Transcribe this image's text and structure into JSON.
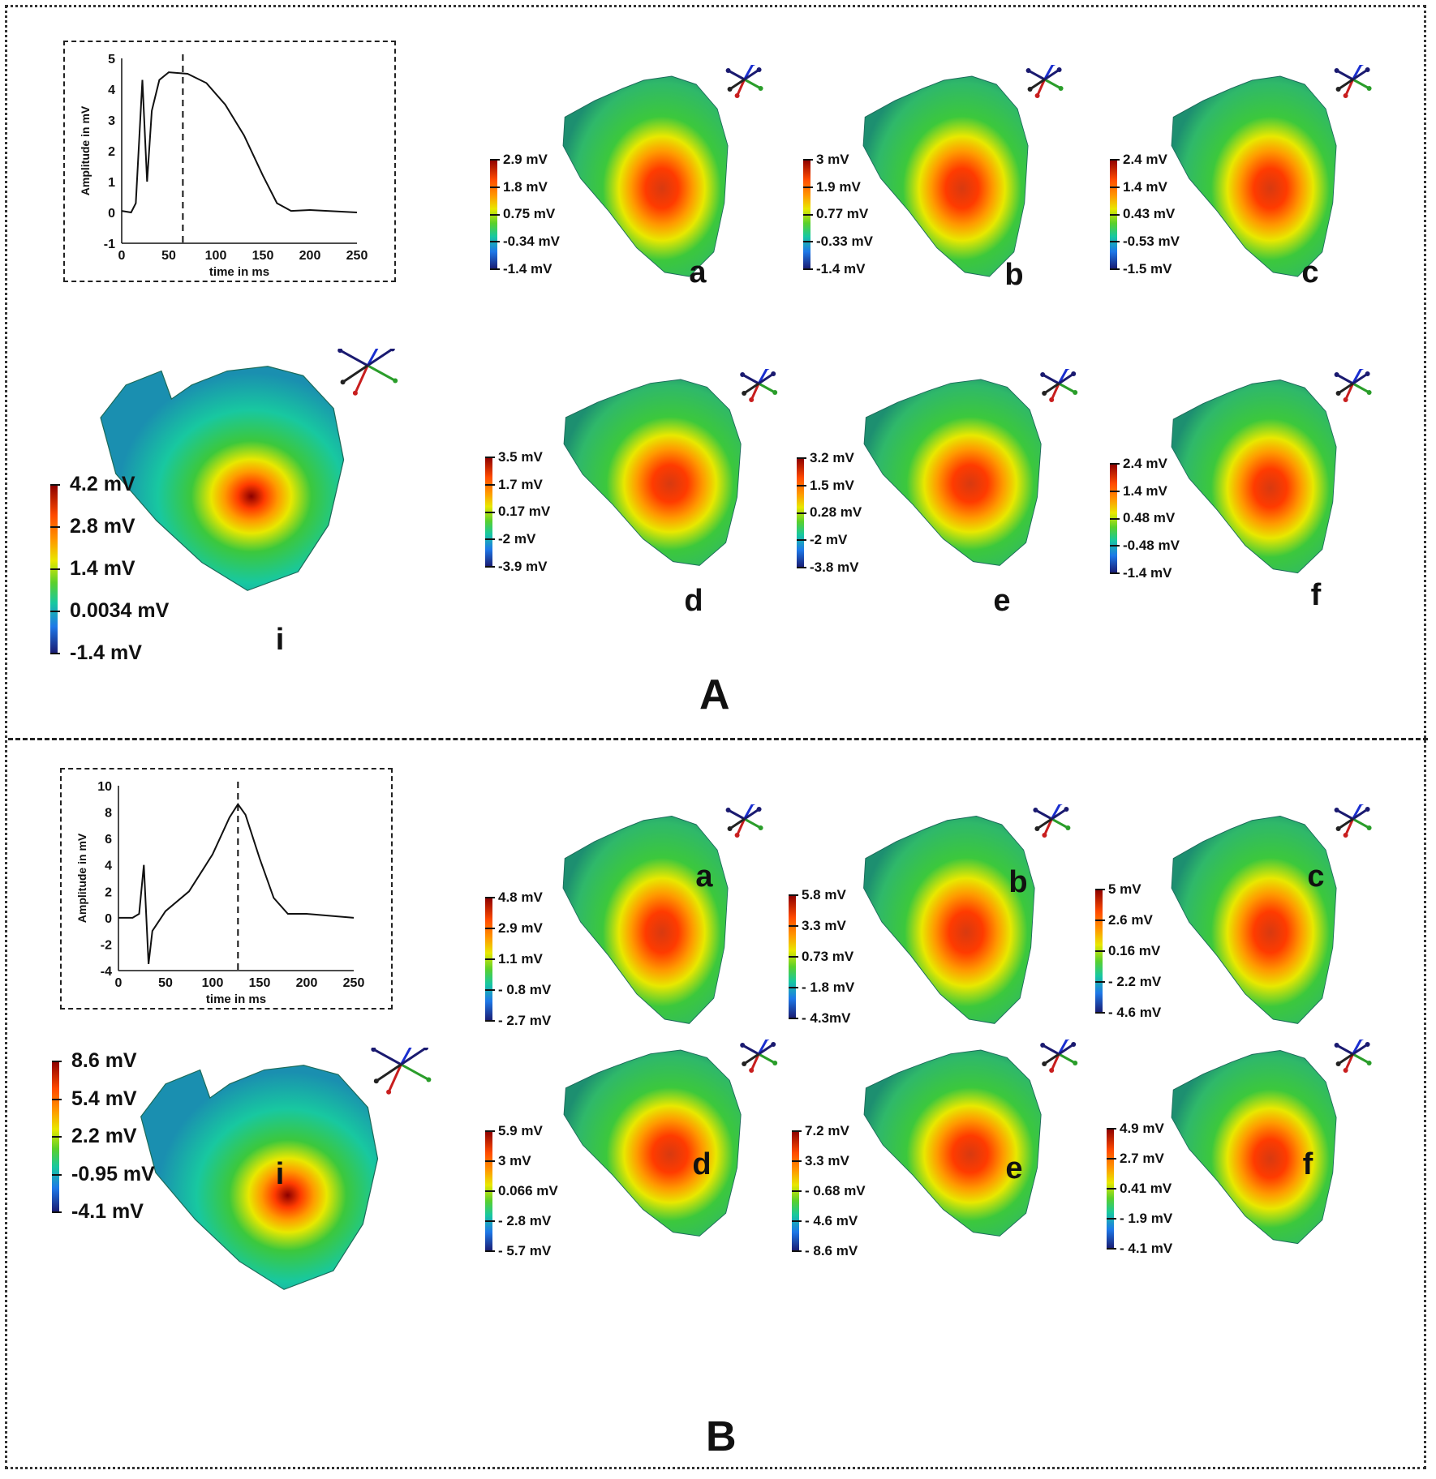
{
  "panels": [
    {
      "letter": "A",
      "trace": {
        "ylabel": "Amplitude in mV",
        "xlabel": "time in ms",
        "yticks": [
          "5",
          "4",
          "3",
          "2",
          "1",
          "0",
          "-1"
        ],
        "xticks": [
          "0",
          "50",
          "100",
          "150",
          "200",
          "250"
        ],
        "marker_ms": 65
      },
      "maps": [
        {
          "label": "i",
          "values": [
            "4.2 mV",
            "2.8 mV",
            "1.4 mV",
            "0.0034 mV",
            "-1.4 mV"
          ]
        },
        {
          "label": "a",
          "values": [
            "2.9 mV",
            "1.8 mV",
            "0.75 mV",
            "-0.34 mV",
            "-1.4 mV"
          ]
        },
        {
          "label": "b",
          "values": [
            "3 mV",
            "1.9 mV",
            "0.77 mV",
            "-0.33 mV",
            "-1.4 mV"
          ]
        },
        {
          "label": "c",
          "values": [
            "2.4 mV",
            "1.4 mV",
            "0.43 mV",
            "-0.53 mV",
            "-1.5 mV"
          ]
        },
        {
          "label": "d",
          "values": [
            "3.5 mV",
            "1.7 mV",
            "0.17 mV",
            "-2 mV",
            "-3.9 mV"
          ]
        },
        {
          "label": "e",
          "values": [
            "3.2 mV",
            "1.5 mV",
            "0.28 mV",
            "-2 mV",
            "-3.8 mV"
          ]
        },
        {
          "label": "f",
          "values": [
            "2.4 mV",
            "1.4 mV",
            "0.48 mV",
            "-0.48 mV",
            "-1.4 mV"
          ]
        }
      ]
    },
    {
      "letter": "B",
      "trace": {
        "ylabel": "Amplitude in mV",
        "xlabel": "time in ms",
        "yticks": [
          "10",
          "8",
          "6",
          "4",
          "2",
          "0",
          "-2",
          "-4"
        ],
        "xticks": [
          "0",
          "50",
          "100",
          "150",
          "200",
          "250"
        ],
        "marker_ms": 127
      },
      "maps": [
        {
          "label": "i",
          "values": [
            "8.6 mV",
            "5.4 mV",
            "2.2 mV",
            "-0.95 mV",
            "-4.1 mV"
          ]
        },
        {
          "label": "a",
          "values": [
            "4.8 mV",
            "2.9 mV",
            "1.1 mV",
            "- 0.8 mV",
            "- 2.7 mV"
          ]
        },
        {
          "label": "b",
          "values": [
            "5.8 mV",
            "3.3 mV",
            "0.73 mV",
            "- 1.8 mV",
            "- 4.3mV"
          ]
        },
        {
          "label": "c",
          "values": [
            "5 mV",
            "2.6 mV",
            "0.16 mV",
            "- 2.2 mV",
            "- 4.6 mV"
          ]
        },
        {
          "label": "d",
          "values": [
            "5.9 mV",
            "3 mV",
            "0.066 mV",
            "- 2.8 mV",
            "- 5.7 mV"
          ]
        },
        {
          "label": "e",
          "values": [
            "7.2 mV",
            "3.3 mV",
            "- 0.68 mV",
            "- 4.6 mV",
            "- 8.6 mV"
          ]
        },
        {
          "label": "f",
          "values": [
            "4.9 mV",
            "2.7 mV",
            "0.41 mV",
            "- 1.9 mV",
            "- 4.1 mV"
          ]
        }
      ]
    }
  ],
  "colors": {
    "dark_red": "#8b0000",
    "red": "#ff3b00",
    "orange": "#ff9a00",
    "yellow": "#e8e800",
    "green": "#3cc83c",
    "cyan": "#18c8a0",
    "blue": "#1e78e8",
    "navy": "#1a1a70",
    "axis_x": "#2a9d2a",
    "axis_y": "#1a2fd0",
    "axis_z": "#c81e1e"
  }
}
